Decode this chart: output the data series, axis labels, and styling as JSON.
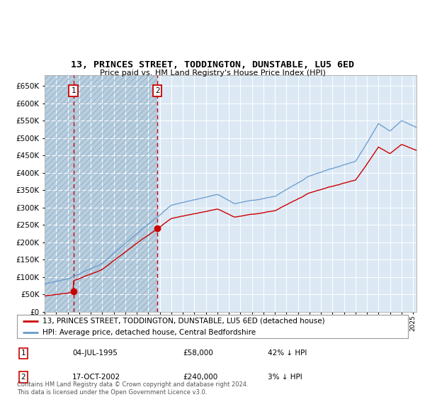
{
  "title": "13, PRINCES STREET, TODDINGTON, DUNSTABLE, LU5 6ED",
  "subtitle": "Price paid vs. HM Land Registry's House Price Index (HPI)",
  "sale_color": "#cc0000",
  "hpi_color": "#6699cc",
  "legend_label_price": "13, PRINCES STREET, TODDINGTON, DUNSTABLE, LU5 6ED (detached house)",
  "legend_label_hpi": "HPI: Average price, detached house, Central Bedfordshire",
  "footnote": "Contains HM Land Registry data © Crown copyright and database right 2024.\nThis data is licensed under the Open Government Licence v3.0.",
  "sale_prices": [
    58000,
    240000
  ],
  "sale_year1": 1995.504,
  "sale_year2": 2002.792,
  "ylim": [
    0,
    680000
  ],
  "yticks": [
    0,
    50000,
    100000,
    150000,
    200000,
    250000,
    300000,
    350000,
    400000,
    450000,
    500000,
    550000,
    600000,
    650000
  ],
  "xlim": [
    1993,
    2025.3
  ],
  "plot_bg": "#dce9f5",
  "hatch_color": "#b8cfe0",
  "grid_color": "#ffffff"
}
